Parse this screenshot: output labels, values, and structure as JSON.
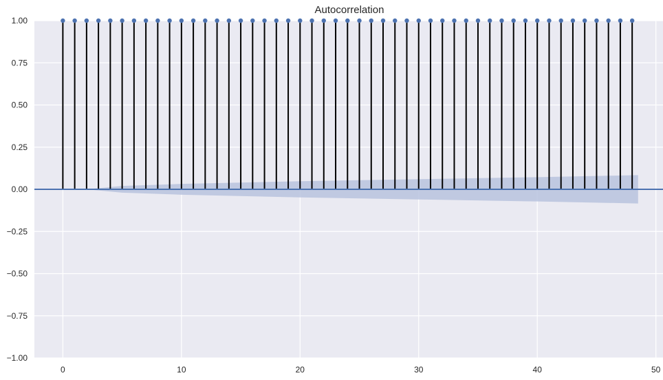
{
  "chart_data": {
    "type": "stem",
    "title": "Autocorrelation",
    "xlabel": "",
    "ylabel": "",
    "xlim": [
      -2.4,
      50.6
    ],
    "ylim": [
      -1.0,
      1.0
    ],
    "x_ticks": [
      0,
      10,
      20,
      30,
      40,
      50
    ],
    "y_ticks": [
      -1.0,
      -0.75,
      -0.5,
      -0.25,
      0.0,
      0.25,
      0.5,
      0.75,
      1.0
    ],
    "y_tick_labels": [
      "−1.00",
      "−0.75",
      "−0.50",
      "−0.25",
      "0.00",
      "0.25",
      "0.50",
      "0.75",
      "1.00"
    ],
    "x_tick_labels": [
      "0",
      "10",
      "20",
      "30",
      "40",
      "50"
    ],
    "grid": true,
    "lags": [
      0,
      1,
      2,
      3,
      4,
      5,
      6,
      7,
      8,
      9,
      10,
      11,
      12,
      13,
      14,
      15,
      16,
      17,
      18,
      19,
      20,
      21,
      22,
      23,
      24,
      25,
      26,
      27,
      28,
      29,
      30,
      31,
      32,
      33,
      34,
      35,
      36,
      37,
      38,
      39,
      40,
      41,
      42,
      43,
      44,
      45,
      46,
      47,
      48
    ],
    "values": [
      1,
      1,
      1,
      1,
      1,
      1,
      1,
      1,
      1,
      1,
      1,
      1,
      1,
      1,
      1,
      1,
      1,
      1,
      1,
      1,
      1,
      1,
      1,
      1,
      1,
      1,
      1,
      1,
      1,
      1,
      1,
      1,
      1,
      1,
      1,
      1,
      1,
      1,
      1,
      1,
      1,
      1,
      1,
      1,
      1,
      1,
      1,
      1,
      1
    ],
    "confidence_band": {
      "x": [
        0,
        2,
        5,
        10,
        20,
        30,
        40,
        48.5
      ],
      "upper": [
        0.0,
        0.0,
        0.02,
        0.032,
        0.048,
        0.06,
        0.072,
        0.084
      ],
      "lower": [
        0.0,
        0.0,
        -0.02,
        -0.032,
        -0.048,
        -0.06,
        -0.072,
        -0.084
      ]
    },
    "colors": {
      "background": "#eaeaf2",
      "grid": "#ffffff",
      "stem": "#000000",
      "marker": "#4c72b0",
      "zero_line": "#4c72b0",
      "band": "#b9c3de",
      "text": "#262626"
    }
  }
}
